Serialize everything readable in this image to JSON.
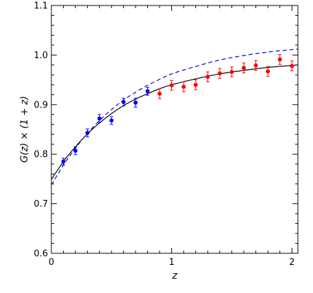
{
  "chart_data": {
    "type": "scatter",
    "xlabel": "z",
    "ylabel": "G(z) × (1 + z)",
    "xlim": [
      0,
      2.05
    ],
    "ylim": [
      0.6,
      1.1
    ],
    "x_ticks": [
      0,
      1,
      2
    ],
    "x_tick_labels": [
      "0",
      "1",
      "2"
    ],
    "y_ticks": [
      0.6,
      0.7,
      0.8,
      0.9,
      1.0,
      1.1
    ],
    "y_tick_labels": [
      "0.6",
      "0.7",
      "0.8",
      "0.9",
      "1.0",
      "1.1"
    ],
    "grid": false,
    "series": [
      {
        "kind": "points",
        "color": "#0000ff",
        "points": [
          {
            "x": 0.1,
            "y": 0.785,
            "err": 0.007
          },
          {
            "x": 0.2,
            "y": 0.807,
            "err": 0.008
          },
          {
            "x": 0.3,
            "y": 0.843,
            "err": 0.008
          },
          {
            "x": 0.4,
            "y": 0.872,
            "err": 0.008
          },
          {
            "x": 0.5,
            "y": 0.868,
            "err": 0.008
          },
          {
            "x": 0.6,
            "y": 0.905,
            "err": 0.008
          },
          {
            "x": 0.7,
            "y": 0.904,
            "err": 0.009
          },
          {
            "x": 0.8,
            "y": 0.927,
            "err": 0.008
          }
        ]
      },
      {
        "kind": "points",
        "color": "#ff0000",
        "points": [
          {
            "x": 0.9,
            "y": 0.922,
            "err": 0.01
          },
          {
            "x": 1.0,
            "y": 0.939,
            "err": 0.01
          },
          {
            "x": 1.1,
            "y": 0.936,
            "err": 0.01
          },
          {
            "x": 1.2,
            "y": 0.94,
            "err": 0.01
          },
          {
            "x": 1.3,
            "y": 0.956,
            "err": 0.01
          },
          {
            "x": 1.4,
            "y": 0.963,
            "err": 0.01
          },
          {
            "x": 1.5,
            "y": 0.966,
            "err": 0.01
          },
          {
            "x": 1.6,
            "y": 0.974,
            "err": 0.01
          },
          {
            "x": 1.7,
            "y": 0.979,
            "err": 0.01
          },
          {
            "x": 1.8,
            "y": 0.967,
            "err": 0.01
          },
          {
            "x": 1.9,
            "y": 0.991,
            "err": 0.01
          },
          {
            "x": 2.0,
            "y": 0.978,
            "err": 0.01
          }
        ]
      },
      {
        "kind": "line",
        "color": "#000000",
        "dash": "solid",
        "points": [
          {
            "x": 0,
            "y": 0.749
          },
          {
            "x": 0.1,
            "y": 0.785
          },
          {
            "x": 0.2,
            "y": 0.815
          },
          {
            "x": 0.3,
            "y": 0.841
          },
          {
            "x": 0.4,
            "y": 0.863
          },
          {
            "x": 0.5,
            "y": 0.882
          },
          {
            "x": 0.6,
            "y": 0.898
          },
          {
            "x": 0.7,
            "y": 0.911
          },
          {
            "x": 0.8,
            "y": 0.922
          },
          {
            "x": 0.9,
            "y": 0.932
          },
          {
            "x": 1.0,
            "y": 0.94
          },
          {
            "x": 1.2,
            "y": 0.952
          },
          {
            "x": 1.4,
            "y": 0.962
          },
          {
            "x": 1.6,
            "y": 0.969
          },
          {
            "x": 1.8,
            "y": 0.975
          },
          {
            "x": 2.0,
            "y": 0.979
          },
          {
            "x": 2.05,
            "y": 0.98
          }
        ]
      },
      {
        "kind": "line",
        "color": "#0000cc",
        "dash": "dashed",
        "points": [
          {
            "x": 0,
            "y": 0.738
          },
          {
            "x": 0.1,
            "y": 0.778
          },
          {
            "x": 0.2,
            "y": 0.812
          },
          {
            "x": 0.3,
            "y": 0.842
          },
          {
            "x": 0.4,
            "y": 0.868
          },
          {
            "x": 0.5,
            "y": 0.89
          },
          {
            "x": 0.6,
            "y": 0.909
          },
          {
            "x": 0.7,
            "y": 0.925
          },
          {
            "x": 0.8,
            "y": 0.939
          },
          {
            "x": 0.9,
            "y": 0.951
          },
          {
            "x": 1.0,
            "y": 0.962
          },
          {
            "x": 1.2,
            "y": 0.977
          },
          {
            "x": 1.4,
            "y": 0.99
          },
          {
            "x": 1.6,
            "y": 0.999
          },
          {
            "x": 1.8,
            "y": 1.006
          },
          {
            "x": 2.0,
            "y": 1.011
          },
          {
            "x": 2.05,
            "y": 1.012
          }
        ]
      }
    ]
  }
}
